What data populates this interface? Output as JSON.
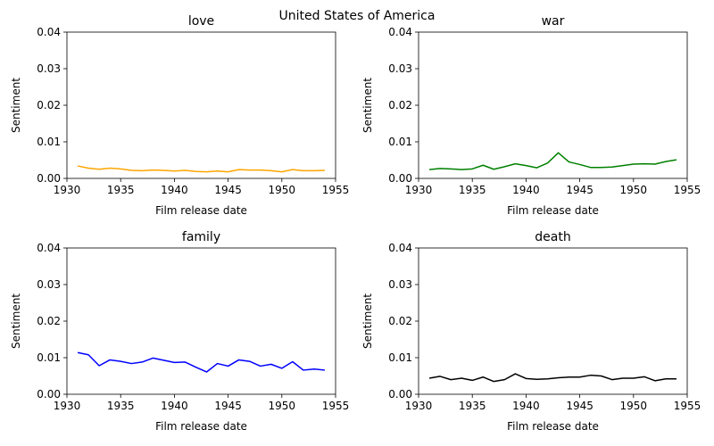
{
  "figure": {
    "suptitle": "United States of America"
  },
  "chart_data": [
    {
      "type": "line",
      "title": "love",
      "xlabel": "Film release date",
      "ylabel": "Sentiment",
      "xlim": [
        1930,
        1955
      ],
      "ylim": [
        0,
        0.04
      ],
      "xticks": [
        1930,
        1935,
        1940,
        1945,
        1950,
        1955
      ],
      "yticks": [
        "0.00",
        "0.01",
        "0.02",
        "0.03",
        "0.04"
      ],
      "grid": false,
      "color": "#FFA500",
      "x": [
        1931,
        1932,
        1933,
        1934,
        1935,
        1936,
        1937,
        1938,
        1939,
        1940,
        1941,
        1942,
        1943,
        1944,
        1945,
        1946,
        1947,
        1948,
        1949,
        1950,
        1951,
        1952,
        1953,
        1954
      ],
      "y": [
        0.0034,
        0.0028,
        0.0025,
        0.0028,
        0.0026,
        0.0022,
        0.0021,
        0.0023,
        0.0022,
        0.002,
        0.0022,
        0.0019,
        0.0018,
        0.002,
        0.0018,
        0.0024,
        0.0023,
        0.0023,
        0.0021,
        0.0018,
        0.0024,
        0.0021,
        0.0021,
        0.0022
      ]
    },
    {
      "type": "line",
      "title": "war",
      "xlabel": "Film release date",
      "ylabel": "Sentiment",
      "xlim": [
        1930,
        1955
      ],
      "ylim": [
        0,
        0.04
      ],
      "xticks": [
        1930,
        1935,
        1940,
        1945,
        1950,
        1955
      ],
      "yticks": [
        "0.00",
        "0.01",
        "0.02",
        "0.03",
        "0.04"
      ],
      "grid": false,
      "color": "#008000",
      "x": [
        1931,
        1932,
        1933,
        1934,
        1935,
        1936,
        1937,
        1938,
        1939,
        1940,
        1941,
        1942,
        1943,
        1944,
        1945,
        1946,
        1947,
        1948,
        1949,
        1950,
        1951,
        1952,
        1953,
        1954
      ],
      "y": [
        0.0024,
        0.0027,
        0.0026,
        0.0024,
        0.0026,
        0.0036,
        0.0025,
        0.0032,
        0.004,
        0.0035,
        0.0029,
        0.0042,
        0.007,
        0.0045,
        0.0038,
        0.003,
        0.003,
        0.0031,
        0.0035,
        0.0039,
        0.004,
        0.0039,
        0.0046,
        0.0051
      ]
    },
    {
      "type": "line",
      "title": "family",
      "xlabel": "Film release date",
      "ylabel": "Sentiment",
      "xlim": [
        1930,
        1955
      ],
      "ylim": [
        0,
        0.04
      ],
      "xticks": [
        1930,
        1935,
        1940,
        1945,
        1950,
        1955
      ],
      "yticks": [
        "0.00",
        "0.01",
        "0.02",
        "0.03",
        "0.04"
      ],
      "grid": false,
      "color": "#0000FF",
      "x": [
        1931,
        1932,
        1933,
        1934,
        1935,
        1936,
        1937,
        1938,
        1939,
        1940,
        1941,
        1942,
        1943,
        1944,
        1945,
        1946,
        1947,
        1948,
        1949,
        1950,
        1951,
        1952,
        1953,
        1954
      ],
      "y": [
        0.0114,
        0.0108,
        0.0078,
        0.0094,
        0.009,
        0.0084,
        0.0088,
        0.0099,
        0.0093,
        0.0087,
        0.0088,
        0.0074,
        0.0061,
        0.0084,
        0.0077,
        0.0094,
        0.009,
        0.0077,
        0.0082,
        0.0071,
        0.0089,
        0.0066,
        0.0069,
        0.0066
      ]
    },
    {
      "type": "line",
      "title": "death",
      "xlabel": "Film release date",
      "ylabel": "Sentiment",
      "xlim": [
        1930,
        1955
      ],
      "ylim": [
        0,
        0.04
      ],
      "xticks": [
        1930,
        1935,
        1940,
        1945,
        1950,
        1955
      ],
      "yticks": [
        "0.00",
        "0.01",
        "0.02",
        "0.03",
        "0.04"
      ],
      "grid": false,
      "color": "#000000",
      "x": [
        1931,
        1932,
        1933,
        1934,
        1935,
        1936,
        1937,
        1938,
        1939,
        1940,
        1941,
        1942,
        1943,
        1944,
        1945,
        1946,
        1947,
        1948,
        1949,
        1950,
        1951,
        1952,
        1953,
        1954
      ],
      "y": [
        0.0044,
        0.0049,
        0.004,
        0.0044,
        0.0038,
        0.0047,
        0.0035,
        0.004,
        0.0056,
        0.0043,
        0.0041,
        0.0042,
        0.0045,
        0.0047,
        0.0047,
        0.0052,
        0.005,
        0.004,
        0.0044,
        0.0044,
        0.0048,
        0.0037,
        0.0042,
        0.0042
      ]
    }
  ]
}
